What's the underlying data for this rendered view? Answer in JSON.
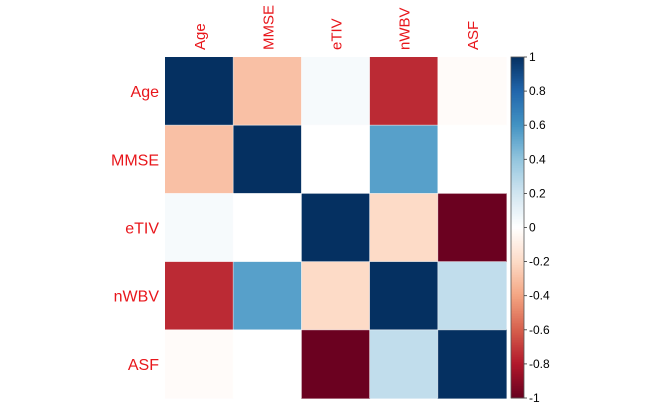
{
  "chart_data": {
    "type": "heatmap",
    "title": "",
    "variables": [
      "Age",
      "MMSE",
      "eTIV",
      "nWBV",
      "ASF"
    ],
    "matrix": [
      [
        1.0,
        -0.3,
        0.04,
        -0.75,
        -0.02
      ],
      [
        -0.3,
        1.0,
        0.0,
        0.55,
        0.0
      ],
      [
        0.04,
        0.0,
        1.0,
        -0.2,
        -0.99
      ],
      [
        -0.75,
        0.55,
        -0.2,
        1.0,
        0.25
      ],
      [
        -0.02,
        0.0,
        -0.99,
        0.25,
        1.0
      ]
    ],
    "color_scale": {
      "range": [
        -1,
        1
      ],
      "ticks": [
        "1",
        "0.8",
        "0.6",
        "0.4",
        "0.2",
        "0",
        "-0.2",
        "-0.4",
        "-0.6",
        "-0.8",
        "-1"
      ],
      "palette": [
        "#67001F",
        "#B2182B",
        "#D6604D",
        "#F4A582",
        "#FDDBC7",
        "#FFFFFF",
        "#D1E5F0",
        "#92C5DE",
        "#4393C3",
        "#2166AC",
        "#053061"
      ]
    },
    "label_color": "#E8161B",
    "legend_position": "right"
  }
}
